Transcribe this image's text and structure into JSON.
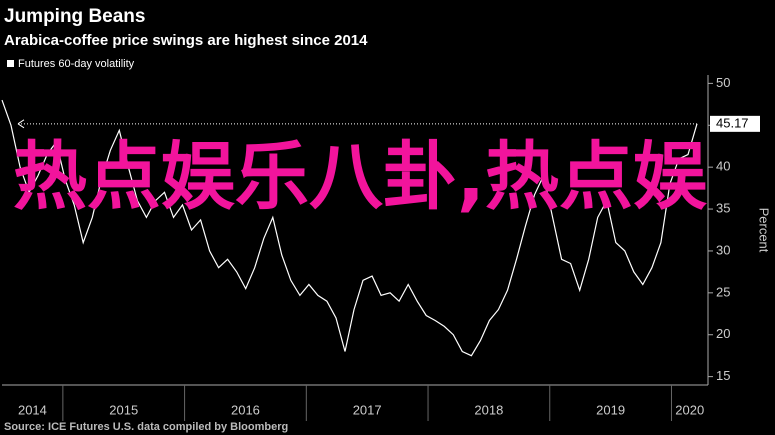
{
  "chart_data": {
    "type": "line",
    "title": "Jumping Beans",
    "subtitle": "Arabica-coffee price swings are highest since 2014",
    "y_axis_label": "Percent",
    "source": "Source: ICE Futures U.S. data compiled by Bloomberg",
    "annotation": "热点娱乐八卦,热点娱",
    "xlim": [
      2014.5,
      2020.3
    ],
    "xticks": [
      2014,
      2015,
      2016,
      2017,
      2018,
      2019,
      2020
    ],
    "ylim": [
      14,
      51
    ],
    "yticks": [
      15,
      20,
      25,
      30,
      35,
      40,
      45,
      50
    ],
    "grid": false,
    "series": [
      {
        "name": "Futures 60-day volatility",
        "color": "#ffffff",
        "values": [
          48,
          45,
          40,
          37,
          39,
          41.5,
          43,
          38.5,
          35.5,
          31,
          34,
          38.5,
          42,
          44.4,
          40,
          36,
          34,
          36,
          37,
          34,
          35.5,
          32.5,
          33.7,
          30,
          28,
          29,
          27.5,
          25.5,
          28,
          31.5,
          34,
          29.5,
          26.5,
          24.7,
          26,
          24.7,
          24,
          22,
          18,
          23,
          26.5,
          27,
          24.7,
          25,
          24,
          26,
          24,
          22.3,
          21.7,
          21,
          20,
          18,
          17.5,
          19.3,
          21.7,
          23,
          25.3,
          29,
          33,
          36.7,
          39,
          34,
          29,
          28.5,
          25.3,
          29,
          34,
          36,
          31,
          30,
          27.5,
          26,
          28,
          31,
          38,
          41,
          41.5,
          45.17
        ]
      }
    ]
  }
}
